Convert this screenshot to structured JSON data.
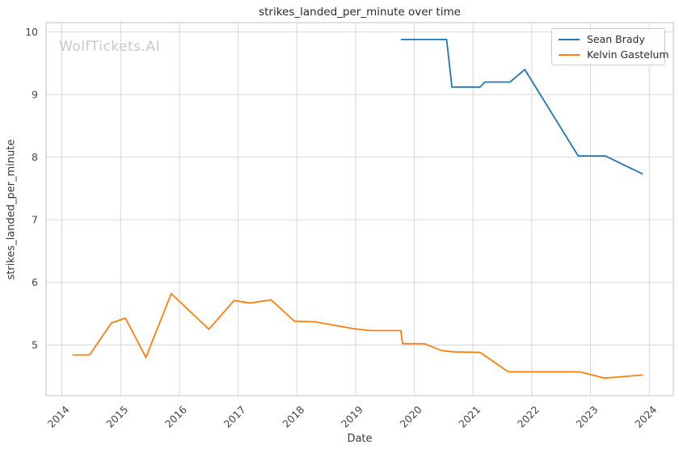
{
  "figure": {
    "title": "strikes_landed_per_minute over time",
    "watermark": "WolfTickets.AI",
    "xlabel": "Date",
    "ylabel": "strikes_landed_per_minute"
  },
  "legend": {
    "position": "upper right",
    "items": [
      {
        "label": "Sean Brady",
        "color": "#1f77b4"
      },
      {
        "label": "Kelvin Gastelum",
        "color": "#ff7f0e"
      }
    ]
  },
  "chart_data": {
    "type": "line",
    "title": "strikes_landed_per_minute over time",
    "xlabel": "Date",
    "ylabel": "strikes_landed_per_minute",
    "grid": true,
    "legend_position": "upper right",
    "x_axis": {
      "ticks": [
        2014,
        2015,
        2016,
        2017,
        2018,
        2019,
        2020,
        2021,
        2022,
        2023,
        2024
      ],
      "range": [
        2013.73,
        2024.41
      ]
    },
    "y_axis": {
      "ticks": [
        5,
        6,
        7,
        8,
        9,
        10
      ],
      "range": [
        4.19,
        10.15
      ]
    },
    "series": [
      {
        "name": "Sean Brady",
        "color": "#1f77b4",
        "points": [
          [
            2019.77,
            9.88
          ],
          [
            2020.55,
            9.88
          ],
          [
            2020.64,
            9.12
          ],
          [
            2021.12,
            9.12
          ],
          [
            2021.2,
            9.2
          ],
          [
            2021.63,
            9.2
          ],
          [
            2021.88,
            9.4
          ],
          [
            2022.79,
            8.02
          ],
          [
            2023.25,
            8.02
          ],
          [
            2023.89,
            7.73
          ]
        ]
      },
      {
        "name": "Kelvin Gastelum",
        "color": "#ff7f0e",
        "points": [
          [
            2014.18,
            4.84
          ],
          [
            2014.47,
            4.84
          ],
          [
            2014.84,
            5.35
          ],
          [
            2015.08,
            5.43
          ],
          [
            2015.43,
            4.8
          ],
          [
            2015.86,
            5.82
          ],
          [
            2016.5,
            5.25
          ],
          [
            2016.93,
            5.71
          ],
          [
            2017.2,
            5.67
          ],
          [
            2017.56,
            5.72
          ],
          [
            2017.96,
            5.38
          ],
          [
            2018.3,
            5.37
          ],
          [
            2018.97,
            5.26
          ],
          [
            2019.25,
            5.23
          ],
          [
            2019.77,
            5.23
          ],
          [
            2019.8,
            5.02
          ],
          [
            2020.17,
            5.02
          ],
          [
            2020.47,
            4.91
          ],
          [
            2020.65,
            4.89
          ],
          [
            2021.12,
            4.88
          ],
          [
            2021.6,
            4.57
          ],
          [
            2022.82,
            4.57
          ],
          [
            2023.23,
            4.47
          ],
          [
            2023.89,
            4.52
          ]
        ]
      }
    ]
  }
}
